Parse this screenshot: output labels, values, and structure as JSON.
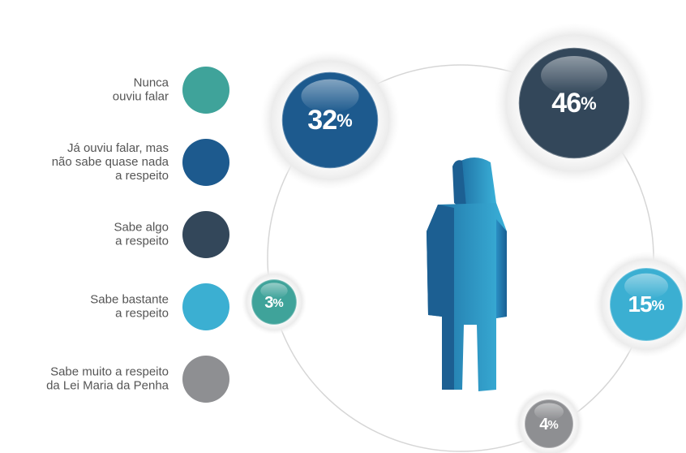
{
  "chart_data": {
    "type": "bubble",
    "categories": [
      [
        "Nunca",
        "ouviu falar"
      ],
      [
        "Já ouviu falar, mas",
        "não sabe quase nada",
        "a respeito"
      ],
      [
        "Sabe algo",
        "a respeito"
      ],
      [
        "Sabe bastante",
        "a respeito"
      ],
      [
        "Sabe muito a respeito",
        "da Lei Maria da Penha"
      ]
    ],
    "values": [
      3,
      32,
      46,
      15,
      4
    ],
    "unit": "%",
    "colors": [
      "#3fa39a",
      "#1d5a8e",
      "#33475a",
      "#3bafd2",
      "#8e8f92"
    ]
  }
}
